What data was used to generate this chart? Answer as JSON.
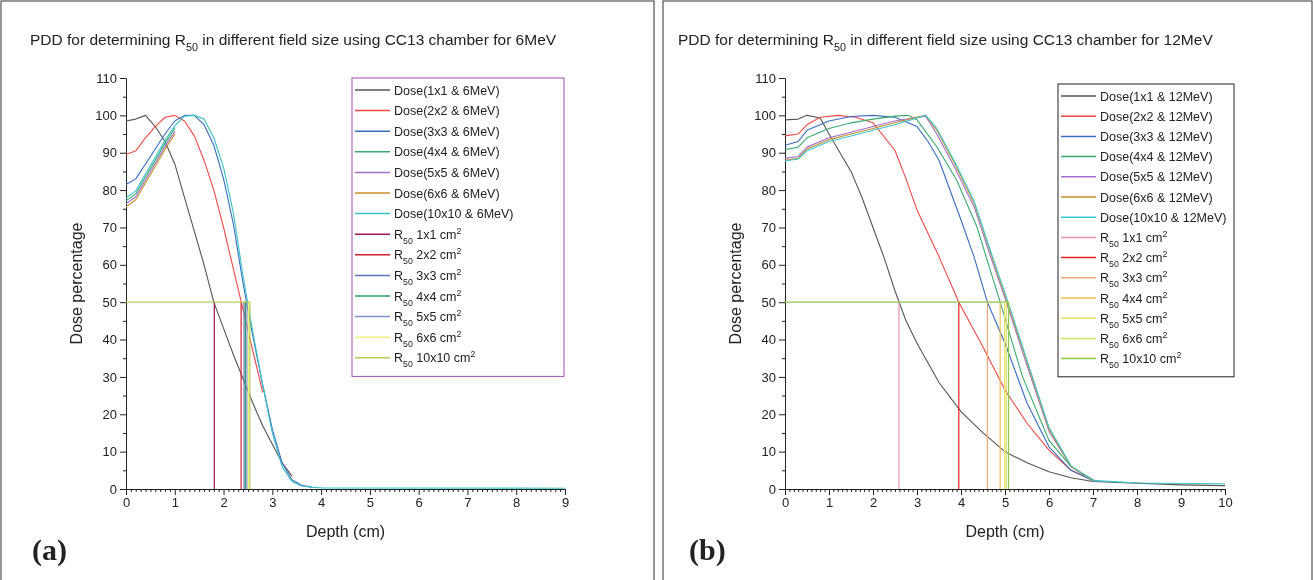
{
  "chart_data": [
    {
      "type": "line",
      "title": "PDD for determining R$_{50}$ in different field size using CC13 chamber for 6MeV",
      "xlabel": "Depth (cm)",
      "ylabel": "Dose percentage",
      "annotations": [
        "(a)"
      ],
      "legend": "top right",
      "grid": false,
      "marker": "none",
      "line_style": "solid",
      "xlim": [
        0,
        9
      ],
      "ylim": [
        0,
        110
      ],
      "xticks": [
        0,
        {
          "value": 0.1,
          "label": null
        },
        {
          "value": 0.2,
          "label": null
        },
        {
          "value": 0.3,
          "label": null
        },
        {
          "value": 0.4,
          "label": null
        },
        {
          "value": 0.5,
          "label": null
        },
        {
          "value": 0.6,
          "label": null
        },
        {
          "value": 0.7,
          "label": null
        },
        {
          "value": 0.8,
          "label": null
        },
        {
          "value": 0.9,
          "label": null
        },
        1,
        {
          "value": 1.1,
          "label": null
        },
        {
          "value": 1.2,
          "label": null
        },
        {
          "value": 1.3,
          "label": null
        },
        {
          "value": 1.4,
          "label": null
        },
        {
          "value": 1.5,
          "label": null
        },
        {
          "value": 1.6,
          "label": null
        },
        {
          "value": 1.7,
          "label": null
        },
        {
          "value": 1.8,
          "label": null
        },
        {
          "value": 1.9,
          "label": null
        },
        2,
        {
          "value": 2.1,
          "label": null
        },
        {
          "value": 2.2,
          "label": null
        },
        {
          "value": 2.3,
          "label": null
        },
        {
          "value": 2.4,
          "label": null
        },
        {
          "value": 2.5,
          "label": null
        },
        {
          "value": 2.6,
          "label": null
        },
        {
          "value": 2.7,
          "label": null
        },
        {
          "value": 2.8,
          "label": null
        },
        {
          "value": 2.9,
          "label": null
        },
        3,
        {
          "value": 3.1,
          "label": null
        },
        {
          "value": 3.2,
          "label": null
        },
        {
          "value": 3.3,
          "label": null
        },
        {
          "value": 3.4,
          "label": null
        },
        {
          "value": 3.5,
          "label": null
        },
        {
          "value": 3.6,
          "label": null
        },
        {
          "value": 3.7,
          "label": null
        },
        {
          "value": 3.8,
          "label": null
        },
        {
          "value": 3.9,
          "label": null
        },
        4,
        {
          "value": 4.1,
          "label": null
        },
        {
          "value": 4.2,
          "label": null
        },
        {
          "value": 4.3,
          "label": null
        },
        {
          "value": 4.4,
          "label": null
        },
        {
          "value": 4.5,
          "label": null
        },
        {
          "value": 4.6,
          "label": null
        },
        {
          "value": 4.7,
          "label": null
        },
        {
          "value": 4.8,
          "label": null
        },
        {
          "value": 4.9,
          "label": null
        },
        5,
        {
          "value": 5.1,
          "label": null
        },
        {
          "value": 5.2,
          "label": null
        },
        {
          "value": 5.3,
          "label": null
        },
        {
          "value": 5.4,
          "label": null
        },
        {
          "value": 5.5,
          "label": null
        },
        {
          "value": 5.6,
          "label": null
        },
        {
          "value": 5.7,
          "label": null
        },
        {
          "value": 5.8,
          "label": null
        },
        {
          "value": 5.9,
          "label": null
        },
        6,
        {
          "value": 6.1,
          "label": null
        },
        {
          "value": 6.2,
          "label": null
        },
        {
          "value": 6.3,
          "label": null
        },
        {
          "value": 6.4,
          "label": null
        },
        {
          "value": 6.5,
          "label": null
        },
        {
          "value": 6.6,
          "label": null
        },
        {
          "value": 6.7,
          "label": null
        },
        {
          "value": 6.8,
          "label": null
        },
        {
          "value": 6.9,
          "label": null
        },
        7,
        {
          "value": 7.1,
          "label": null
        },
        {
          "value": 7.2,
          "label": null
        },
        {
          "value": 7.3,
          "label": null
        },
        {
          "value": 7.4,
          "label": null
        },
        {
          "value": 7.5,
          "label": null
        },
        {
          "value": 7.6,
          "label": null
        },
        {
          "value": 7.7,
          "label": null
        },
        {
          "value": 7.8,
          "label": null
        },
        {
          "value": 7.9,
          "label": null
        },
        8,
        {
          "value": 8.1,
          "label": null
        },
        {
          "value": 8.2,
          "label": null
        },
        {
          "value": 8.3,
          "label": null
        },
        {
          "value": 8.4,
          "label": null
        },
        {
          "value": 8.5,
          "label": null
        },
        {
          "value": 8.6,
          "label": null
        },
        {
          "value": 8.7,
          "label": null
        },
        {
          "value": 8.8,
          "label": null
        },
        {
          "value": 8.9,
          "label": null
        },
        9
      ],
      "yticks": [
        0,
        {
          "value": 5,
          "label": null
        },
        10,
        {
          "value": 15,
          "label": null
        },
        20,
        {
          "value": 25,
          "label": null
        },
        30,
        {
          "value": 35,
          "label": null
        },
        40,
        {
          "value": 45,
          "label": null
        },
        50,
        {
          "value": 55,
          "label": null
        },
        60,
        {
          "value": 65,
          "label": null
        },
        70,
        {
          "value": 75,
          "label": null
        },
        80,
        {
          "value": 85,
          "label": null
        },
        90,
        {
          "value": 95,
          "label": null
        },
        100,
        {
          "value": 105,
          "label": null
        },
        110
      ],
      "series": [
        {
          "name": "Dose(1x1 & 6MeV)",
          "color": "#555555",
          "x": [
            0,
            0.2,
            0.4,
            0.6,
            0.8,
            1.0,
            1.2,
            1.4,
            1.6,
            1.8,
            2.0,
            2.2,
            2.4,
            2.6,
            2.8,
            3.0,
            3.2,
            3.4
          ],
          "values": [
            98.5,
            99,
            100,
            97,
            93,
            87,
            78,
            69,
            60,
            50,
            43,
            36,
            29.5,
            23,
            17,
            12,
            7,
            3.5
          ]
        },
        {
          "name": "Dose(2x2 & 6MeV)",
          "color": "#f04848",
          "x": [
            0,
            0.2,
            0.4,
            0.6,
            0.8,
            1.0,
            1.2,
            1.4,
            1.6,
            1.8,
            2.0,
            2.2,
            2.4,
            2.6,
            2.8
          ],
          "values": [
            89.5,
            90.5,
            94,
            97,
            99.5,
            100,
            98.5,
            94.5,
            88,
            80,
            70,
            59,
            48,
            37,
            26
          ]
        },
        {
          "name": "Dose(3x3 & 6MeV)",
          "color": "#3a6cc0",
          "x": [
            0,
            0.2,
            0.4,
            0.6,
            0.8,
            1.0,
            1.2,
            1.4,
            1.6,
            1.8,
            2.0,
            2.2,
            2.4,
            2.6,
            2.8,
            3.0,
            3.2,
            3.4,
            3.6,
            3.8
          ],
          "values": [
            81.5,
            83,
            87,
            91,
            95,
            98.5,
            100,
            100,
            97.5,
            92,
            83,
            71,
            55,
            41,
            28,
            16,
            7,
            2.5,
            1,
            0.5
          ]
        },
        {
          "name": "Dose(4x4 & 6MeV)",
          "color": "#3aaa70",
          "x": [
            0,
            0.2,
            0.4,
            0.6,
            0.8,
            1.0
          ],
          "values": [
            77.1,
            79,
            83.5,
            88,
            92.5,
            96.5
          ]
        },
        {
          "name": "Dose(5x5 & 6MeV)",
          "color": "#a070c8",
          "x": [
            0,
            0.2,
            0.4,
            0.6,
            0.8,
            1.0
          ],
          "values": [
            76.3,
            78.2,
            82.7,
            87.2,
            91.7,
            95.7
          ]
        },
        {
          "name": "Dose(6x6 & 6MeV)",
          "color": "#c8902a",
          "x": [
            0,
            0.2,
            0.4,
            0.6,
            0.8,
            1.0
          ],
          "values": [
            75.5,
            77.4,
            81.9,
            86.4,
            90.9,
            95
          ]
        },
        {
          "name": "Dose(10x10 & 6MeV)",
          "color": "#38c0c8",
          "x": [
            0,
            0.2,
            0.4,
            0.6,
            0.8,
            1.0,
            1.2,
            1.4,
            1.6,
            1.8,
            2.0,
            2.2,
            2.4,
            2.6,
            2.8,
            3.0,
            3.2,
            3.4,
            3.6,
            3.8,
            4.0,
            9.0
          ],
          "values": [
            77.9,
            79.8,
            84.3,
            88.8,
            93.3,
            97.2,
            99.8,
            100,
            99,
            94,
            86,
            74,
            57,
            42,
            28,
            15,
            6,
            2,
            0.8,
            0.5,
            0.3,
            0.2
          ]
        },
        {
          "name": "R$_{50}$ 1x1 cm$^{2}$",
          "color": "#a01858",
          "x": [
            1.81,
            1.81
          ],
          "values": [
            50,
            0
          ]
        },
        {
          "name": "R$_{50}$ 2x2 cm$^{2}$",
          "color": "#d02030",
          "x": [
            2.36,
            2.36
          ],
          "values": [
            50,
            0
          ]
        },
        {
          "name": "R$_{50}$ 3x3 cm$^{2}$",
          "color": "#6070c0",
          "x": [
            2.42,
            2.42
          ],
          "values": [
            50,
            0
          ]
        },
        {
          "name": "R$_{50}$ 4x4 cm$^{2}$",
          "color": "#30a060",
          "x": [
            2.45,
            2.45
          ],
          "values": [
            50,
            0
          ]
        },
        {
          "name": "R$_{50}$ 5x5 cm$^{2}$",
          "color": "#8090d0",
          "x": [
            2.48,
            2.48
          ],
          "values": [
            50,
            0
          ]
        },
        {
          "name": "R$_{50}$ 6x6 cm$^{2}$",
          "color": "#f0f080",
          "x": [
            2.51,
            2.51
          ],
          "values": [
            50,
            0
          ]
        },
        {
          "name": "R$_{50}$ 10x10 cm$^{2}$",
          "color": "#b0d050",
          "x": [
            0,
            2.54,
            2.54
          ],
          "values": [
            50,
            50,
            0
          ]
        }
      ]
    },
    {
      "type": "line",
      "title": "PDD for determining R$_{50}$ in different field size using CC13 chamber for 12MeV",
      "xlabel": "Depth (cm)",
      "ylabel": "Dose percentage",
      "annotations": [
        "(b)"
      ],
      "legend": "top right",
      "grid": false,
      "marker": "none",
      "line_style": "solid",
      "xlim": [
        0,
        10
      ],
      "ylim": [
        0,
        110
      ],
      "xticks": [
        0,
        {
          "value": 0.1,
          "label": null
        },
        {
          "value": 0.2,
          "label": null
        },
        {
          "value": 0.3,
          "label": null
        },
        {
          "value": 0.4,
          "label": null
        },
        {
          "value": 0.5,
          "label": null
        },
        {
          "value": 0.6,
          "label": null
        },
        {
          "value": 0.7,
          "label": null
        },
        {
          "value": 0.8,
          "label": null
        },
        {
          "value": 0.9,
          "label": null
        },
        1,
        {
          "value": 1.1,
          "label": null
        },
        {
          "value": 1.2,
          "label": null
        },
        {
          "value": 1.3,
          "label": null
        },
        {
          "value": 1.4,
          "label": null
        },
        {
          "value": 1.5,
          "label": null
        },
        {
          "value": 1.6,
          "label": null
        },
        {
          "value": 1.7,
          "label": null
        },
        {
          "value": 1.8,
          "label": null
        },
        {
          "value": 1.9,
          "label": null
        },
        2,
        {
          "value": 2.1,
          "label": null
        },
        {
          "value": 2.2,
          "label": null
        },
        {
          "value": 2.3,
          "label": null
        },
        {
          "value": 2.4,
          "label": null
        },
        {
          "value": 2.5,
          "label": null
        },
        {
          "value": 2.6,
          "label": null
        },
        {
          "value": 2.7,
          "label": null
        },
        {
          "value": 2.8,
          "label": null
        },
        {
          "value": 2.9,
          "label": null
        },
        3,
        {
          "value": 3.1,
          "label": null
        },
        {
          "value": 3.2,
          "label": null
        },
        {
          "value": 3.3,
          "label": null
        },
        {
          "value": 3.4,
          "label": null
        },
        {
          "value": 3.5,
          "label": null
        },
        {
          "value": 3.6,
          "label": null
        },
        {
          "value": 3.7,
          "label": null
        },
        {
          "value": 3.8,
          "label": null
        },
        {
          "value": 3.9,
          "label": null
        },
        4,
        {
          "value": 4.1,
          "label": null
        },
        {
          "value": 4.2,
          "label": null
        },
        {
          "value": 4.3,
          "label": null
        },
        {
          "value": 4.4,
          "label": null
        },
        {
          "value": 4.5,
          "label": null
        },
        {
          "value": 4.6,
          "label": null
        },
        {
          "value": 4.7,
          "label": null
        },
        {
          "value": 4.8,
          "label": null
        },
        {
          "value": 4.9,
          "label": null
        },
        5,
        {
          "value": 5.1,
          "label": null
        },
        {
          "value": 5.2,
          "label": null
        },
        {
          "value": 5.3,
          "label": null
        },
        {
          "value": 5.4,
          "label": null
        },
        {
          "value": 5.5,
          "label": null
        },
        {
          "value": 5.6,
          "label": null
        },
        {
          "value": 5.7,
          "label": null
        },
        {
          "value": 5.8,
          "label": null
        },
        {
          "value": 5.9,
          "label": null
        },
        6,
        {
          "value": 6.1,
          "label": null
        },
        {
          "value": 6.2,
          "label": null
        },
        {
          "value": 6.3,
          "label": null
        },
        {
          "value": 6.4,
          "label": null
        },
        {
          "value": 6.5,
          "label": null
        },
        {
          "value": 6.6,
          "label": null
        },
        {
          "value": 6.7,
          "label": null
        },
        {
          "value": 6.8,
          "label": null
        },
        {
          "value": 6.9,
          "label": null
        },
        7,
        {
          "value": 7.1,
          "label": null
        },
        {
          "value": 7.2,
          "label": null
        },
        {
          "value": 7.3,
          "label": null
        },
        {
          "value": 7.4,
          "label": null
        },
        {
          "value": 7.5,
          "label": null
        },
        {
          "value": 7.6,
          "label": null
        },
        {
          "value": 7.7,
          "label": null
        },
        {
          "value": 7.8,
          "label": null
        },
        {
          "value": 7.9,
          "label": null
        },
        8,
        {
          "value": 8.1,
          "label": null
        },
        {
          "value": 8.2,
          "label": null
        },
        {
          "value": 8.3,
          "label": null
        },
        {
          "value": 8.4,
          "label": null
        },
        {
          "value": 8.5,
          "label": null
        },
        {
          "value": 8.6,
          "label": null
        },
        {
          "value": 8.7,
          "label": null
        },
        {
          "value": 8.8,
          "label": null
        },
        {
          "value": 8.9,
          "label": null
        },
        9,
        {
          "value": 9.1,
          "label": null
        },
        {
          "value": 9.2,
          "label": null
        },
        {
          "value": 9.3,
          "label": null
        },
        {
          "value": 9.4,
          "label": null
        },
        {
          "value": 9.5,
          "label": null
        },
        {
          "value": 9.6,
          "label": null
        },
        {
          "value": 9.7,
          "label": null
        },
        {
          "value": 9.8,
          "label": null
        },
        {
          "value": 9.9,
          "label": null
        },
        10
      ],
      "yticks": [
        0,
        {
          "value": 5,
          "label": null
        },
        10,
        {
          "value": 15,
          "label": null
        },
        20,
        {
          "value": 25,
          "label": null
        },
        30,
        {
          "value": 35,
          "label": null
        },
        40,
        {
          "value": 45,
          "label": null
        },
        50,
        {
          "value": 55,
          "label": null
        },
        60,
        {
          "value": 65,
          "label": null
        },
        70,
        {
          "value": 75,
          "label": null
        },
        80,
        {
          "value": 85,
          "label": null
        },
        90,
        {
          "value": 95,
          "label": null
        },
        100,
        {
          "value": 105,
          "label": null
        },
        110
      ],
      "series": [
        {
          "name": "Dose(1x1 & 12MeV)",
          "color": "#555555",
          "x": [
            0,
            0.3,
            0.5,
            0.8,
            1.0,
            1.25,
            1.5,
            1.75,
            2.0,
            2.25,
            2.5,
            2.75,
            3.0,
            3.5,
            4.0,
            4.5,
            5.0,
            5.5,
            6.0,
            6.5,
            7.0,
            9.0,
            10.0
          ],
          "values": [
            98.8,
            99,
            100,
            99.3,
            95,
            90,
            85,
            78,
            70,
            62,
            53,
            45,
            39,
            28.5,
            20.7,
            15,
            10,
            7,
            4.6,
            3,
            2,
            1.1,
            0.9
          ]
        },
        {
          "name": "Dose(2x2 & 12MeV)",
          "color": "#f04848",
          "x": [
            0,
            0.3,
            0.5,
            0.8,
            1.2,
            1.6,
            2.0,
            2.5,
            2.75,
            3.0,
            3.5,
            3.95,
            4.5,
            5.0,
            5.5,
            6.0,
            6.5,
            7.0
          ],
          "values": [
            94.5,
            95,
            97.5,
            99.5,
            100,
            99.5,
            98,
            90.6,
            83,
            74.7,
            62.2,
            50,
            38,
            26.5,
            17.6,
            10.4,
            5,
            2.5
          ]
        },
        {
          "name": "Dose(3x3 & 12MeV)",
          "color": "#3a6cc0",
          "x": [
            0,
            0.3,
            0.5,
            1.0,
            1.5,
            2.0,
            2.5,
            3.0,
            3.25,
            3.5,
            4.0,
            4.3,
            4.6,
            5.0,
            5.5,
            6.0,
            6.5,
            7.0
          ],
          "values": [
            92,
            93,
            96,
            98.5,
            99.7,
            100,
            99.5,
            97,
            93,
            88,
            72,
            62,
            50,
            39,
            23,
            11.3,
            5,
            2.2
          ]
        },
        {
          "name": "Dose(4x4 & 12MeV)",
          "color": "#3aaa70",
          "x": [
            0,
            0.3,
            0.5,
            1.0,
            1.5,
            2.0,
            2.5,
            2.8,
            3.0,
            3.45,
            3.9,
            4.36,
            4.89,
            5.4,
            6.0,
            6.5,
            7.0
          ],
          "values": [
            90.8,
            91.5,
            94,
            96.5,
            98,
            99,
            99.8,
            100,
            98.8,
            91.6,
            82.7,
            70.2,
            50,
            30,
            13,
            6,
            2.5
          ]
        },
        {
          "name": "Dose(5x5 & 12MeV)",
          "color": "#a070c8",
          "x": [
            0,
            0.3,
            0.5,
            1.0,
            1.5,
            2.0,
            2.5,
            3.0,
            3.2,
            3.45,
            3.86,
            4.3,
            4.65,
            5.03,
            5.5,
            6.0,
            6.5,
            7.0
          ],
          "values": [
            88.5,
            89,
            91.5,
            94,
            95.5,
            97,
            98.5,
            99.5,
            99.7,
            95,
            86,
            75.5,
            63,
            50,
            33,
            15.5,
            6,
            2.2
          ]
        },
        {
          "name": "Dose(6x6 & 12MeV)",
          "color": "#c8902a",
          "x": [
            0,
            0.3,
            0.5,
            1.0,
            1.5,
            2.0,
            2.5,
            3.0,
            3.2,
            3.45,
            3.86,
            4.3,
            4.65,
            5.05,
            5.5,
            6.0,
            6.5,
            7.0
          ],
          "values": [
            88,
            88.5,
            91,
            93.5,
            95,
            96.5,
            98,
            99.5,
            100,
            96,
            87,
            76.5,
            64,
            50,
            34,
            16,
            6,
            2.2
          ]
        },
        {
          "name": "Dose(10x10 & 12MeV)",
          "color": "#38c8d0",
          "x": [
            0,
            0.3,
            0.5,
            1.0,
            1.5,
            2.0,
            2.5,
            3.0,
            3.2,
            3.45,
            3.86,
            4.3,
            4.65,
            5.07,
            5.5,
            6.0,
            6.5,
            7.0,
            8.0,
            10.0
          ],
          "values": [
            87.8,
            88.3,
            90.5,
            93,
            94.5,
            96,
            97.5,
            99.3,
            100,
            96.5,
            87.5,
            77,
            64.5,
            50,
            34.5,
            16.5,
            6.2,
            2.3,
            1.6,
            1.4
          ]
        },
        {
          "name": "R$_{50}$ 1x1 cm$^{2}$",
          "color": "#e890b8",
          "x": [
            2.59,
            2.59
          ],
          "values": [
            50,
            0
          ]
        },
        {
          "name": "R$_{50}$ 2x2 cm$^{2}$",
          "color": "#e02020",
          "x": [
            3.95,
            3.95
          ],
          "values": [
            50,
            0
          ]
        },
        {
          "name": "R$_{50}$ 3x3 cm$^{2}$",
          "color": "#f4a878",
          "x": [
            4.6,
            4.6
          ],
          "values": [
            50,
            0
          ]
        },
        {
          "name": "R$_{50}$ 4x4 cm$^{2}$",
          "color": "#f0c050",
          "x": [
            4.89,
            4.89
          ],
          "values": [
            50,
            0
          ]
        },
        {
          "name": "R$_{50}$ 5x5 cm$^{2}$",
          "color": "#e8e070",
          "x": [
            4.99,
            4.99
          ],
          "values": [
            50,
            0
          ]
        },
        {
          "name": "R$_{50}$ 6x6 cm$^{2}$",
          "color": "#d8e060",
          "x": [
            5.03,
            5.03
          ],
          "values": [
            50,
            0
          ]
        },
        {
          "name": "R$_{50}$ 10x10 cm$^{2}$",
          "color": "#90c848",
          "x": [
            0,
            5.08,
            5.08
          ],
          "values": [
            50,
            50,
            0
          ]
        }
      ]
    }
  ]
}
